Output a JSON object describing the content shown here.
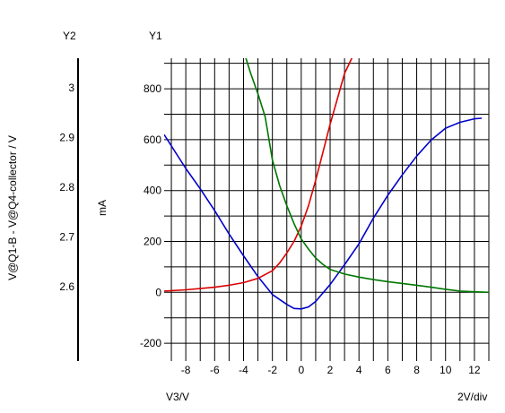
{
  "chart_data": {
    "type": "line",
    "x_axis": {
      "label": "V3/V",
      "scale_text": "2V/div",
      "range": [
        -9.5,
        13
      ],
      "ticks": [
        -8,
        -6,
        -4,
        -2,
        0,
        2,
        4,
        6,
        8,
        10,
        12
      ]
    },
    "y1_axis": {
      "title": "Y1",
      "unit_label": "mA",
      "range": [
        -270,
        920
      ],
      "ticks": [
        -200,
        0,
        200,
        400,
        600,
        800
      ]
    },
    "y2_axis": {
      "title": "Y2",
      "label": "V@Q1-B - V@Q4-collector / V",
      "range": [
        2.45,
        3.06
      ],
      "ticks": [
        2.6,
        2.7,
        2.8,
        2.9,
        3
      ]
    },
    "grid": true,
    "series": [
      {
        "color": "#0000cc",
        "axis": "y2",
        "x": [
          -9.5,
          -8,
          -7,
          -6,
          -5,
          -4,
          -3,
          -2,
          -1,
          -0.5,
          0,
          0.5,
          1,
          2,
          3,
          4,
          5,
          6,
          7,
          8,
          9,
          10,
          11,
          12,
          12.5
        ],
        "y": [
          2.906,
          2.838,
          2.797,
          2.753,
          2.706,
          2.662,
          2.62,
          2.584,
          2.564,
          2.556,
          2.555,
          2.559,
          2.57,
          2.604,
          2.644,
          2.686,
          2.738,
          2.784,
          2.825,
          2.863,
          2.895,
          2.919,
          2.931,
          2.938,
          2.939
        ]
      },
      {
        "color": "#dd0000",
        "axis": "y1",
        "x": [
          -9.5,
          -8,
          -7,
          -6,
          -5,
          -4,
          -3,
          -2,
          -1.5,
          -1,
          -0.5,
          0,
          0.5,
          1,
          1.5,
          2,
          2.5,
          3,
          3.5,
          4
        ],
        "y": [
          5,
          10,
          15,
          20,
          28,
          38,
          55,
          85,
          115,
          155,
          200,
          260,
          340,
          440,
          550,
          660,
          760,
          860,
          920,
          990
        ]
      },
      {
        "color": "#007700",
        "axis": "y1",
        "x": [
          -4,
          -3.5,
          -3,
          -2.5,
          -2,
          -1.5,
          -1,
          -0.5,
          0,
          0.5,
          1,
          1.5,
          2,
          3,
          4,
          5,
          6,
          7,
          8,
          9,
          10,
          11,
          12,
          13
        ],
        "y": [
          950,
          860,
          780,
          690,
          520,
          420,
          340,
          270,
          210,
          170,
          135,
          110,
          90,
          72,
          60,
          50,
          42,
          35,
          28,
          20,
          12,
          5,
          2,
          0
        ]
      }
    ]
  }
}
